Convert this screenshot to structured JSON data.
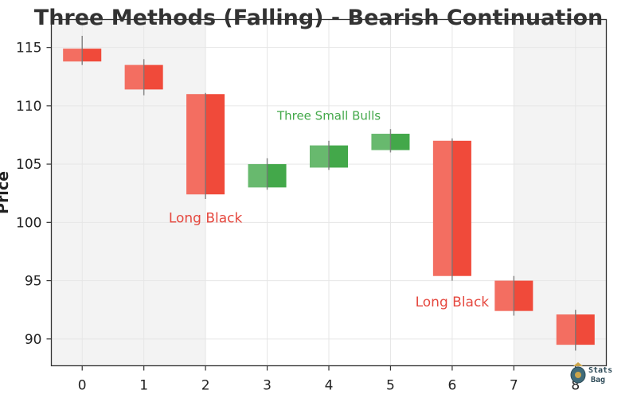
{
  "chart_data": {
    "type": "candlestick",
    "title": "Three Methods (Falling) - Bearish Continuation",
    "xlabel": "",
    "ylabel": "Price",
    "x_ticks": [
      "0",
      "1",
      "2",
      "3",
      "4",
      "5",
      "6",
      "7",
      "8"
    ],
    "y_ticks": [
      "90",
      "95",
      "100",
      "105",
      "110",
      "115"
    ],
    "xlim": [
      -0.5,
      8.5
    ],
    "ylim": [
      87.7,
      117.4
    ],
    "grid": true,
    "candles": [
      {
        "x": 0,
        "open": 114.9,
        "high": 116.0,
        "low": 113.5,
        "close": 113.8
      },
      {
        "x": 1,
        "open": 113.5,
        "high": 114.0,
        "low": 110.9,
        "close": 111.4
      },
      {
        "x": 2,
        "open": 111.0,
        "high": 111.1,
        "low": 102.0,
        "close": 102.4
      },
      {
        "x": 3,
        "open": 103.0,
        "high": 105.5,
        "low": 102.8,
        "close": 105.0
      },
      {
        "x": 4,
        "open": 104.7,
        "high": 107.0,
        "low": 104.5,
        "close": 106.6
      },
      {
        "x": 5,
        "open": 106.2,
        "high": 108.0,
        "low": 106.0,
        "close": 107.6
      },
      {
        "x": 6,
        "open": 107.0,
        "high": 107.2,
        "low": 95.0,
        "close": 95.4
      },
      {
        "x": 7,
        "open": 95.0,
        "high": 95.4,
        "low": 92.0,
        "close": 92.4
      },
      {
        "x": 8,
        "open": 92.1,
        "high": 92.5,
        "low": 89.0,
        "close": 89.5
      }
    ],
    "shaded_ranges": [
      [
        -0.5,
        2
      ],
      [
        7,
        8.5
      ]
    ],
    "annotations": [
      {
        "text": "Long Black",
        "x": 2,
        "y": 100,
        "color": "red"
      },
      {
        "text": "Three Small Bulls",
        "x": 4,
        "y": 108.8,
        "color": "green"
      },
      {
        "text": "Long Black",
        "x": 6,
        "y": 92.8,
        "color": "red"
      }
    ],
    "colors": {
      "bearish": "#f04a3a",
      "bullish": "#43a84a",
      "shade": "#f3f3f3",
      "wick": "#777777"
    }
  },
  "logo": {
    "line1": "Stats",
    "line2": "Bag"
  }
}
